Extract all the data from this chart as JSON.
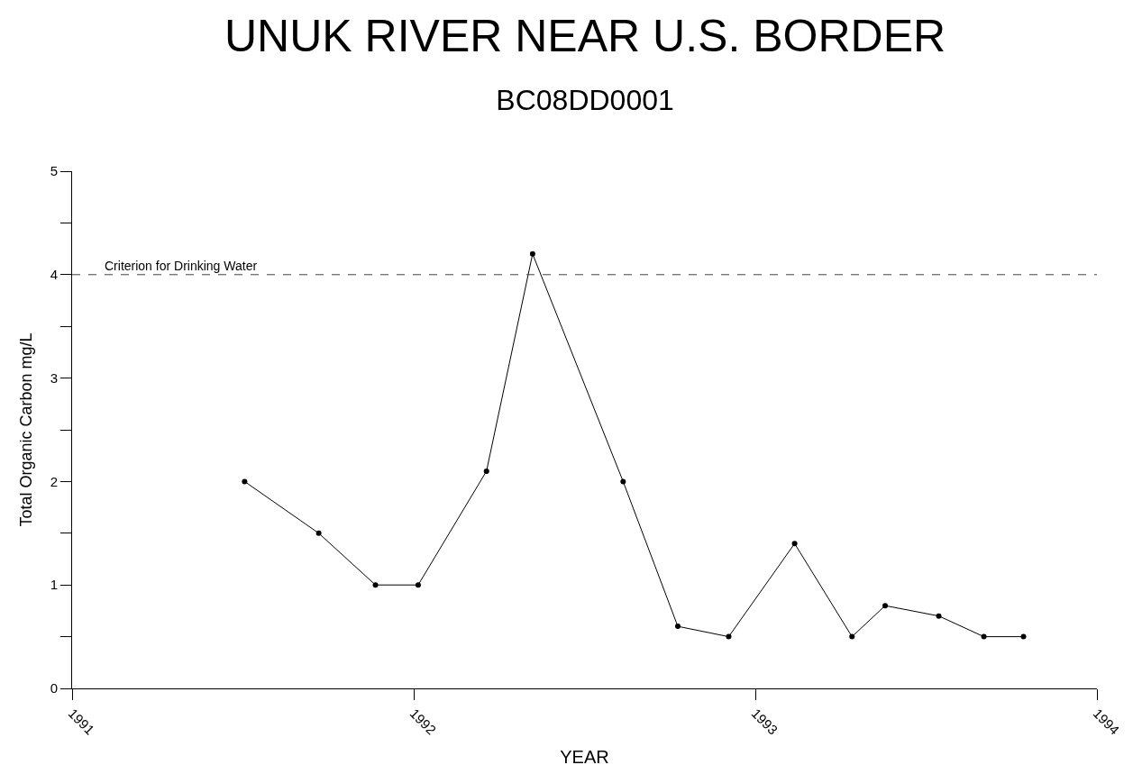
{
  "chart_data": {
    "type": "line",
    "title": "UNUK RIVER NEAR U.S. BORDER",
    "subtitle": "BC08DD0001",
    "xlabel": "YEAR",
    "ylabel": "Total Organic Carbon mg/L",
    "x": [
      1991.505,
      1991.722,
      1991.888,
      1992.013,
      1992.213,
      1992.348,
      1992.613,
      1992.773,
      1992.922,
      1993.115,
      1993.283,
      1993.38,
      1993.537,
      1993.669,
      1993.785
    ],
    "series": [
      {
        "color": "#000000",
        "values": [
          2.0,
          1.5,
          1.0,
          1.0,
          2.1,
          4.2,
          2.0,
          0.6,
          0.5,
          1.4,
          0.5,
          0.8,
          0.7,
          0.5,
          0.5
        ]
      }
    ],
    "xlim": [
      1991,
      1994
    ],
    "xticks": [
      1991,
      1992,
      1993,
      1994
    ],
    "ylim": [
      0,
      5
    ],
    "yticks": [
      0,
      {
        "value": 0.5,
        "label": null
      },
      1,
      {
        "value": 1.5,
        "label": null
      },
      2,
      {
        "value": 2.5,
        "label": null
      },
      3,
      {
        "value": 3.5,
        "label": null
      },
      4,
      {
        "value": 4.5,
        "label": null
      },
      5
    ],
    "ref_lines": [
      {
        "axis": "y",
        "value": 4,
        "label": "Criterion for Drinking Water",
        "color": "#404040",
        "line_style": "dashed"
      }
    ],
    "marker": "circle",
    "line_style": "solid"
  }
}
